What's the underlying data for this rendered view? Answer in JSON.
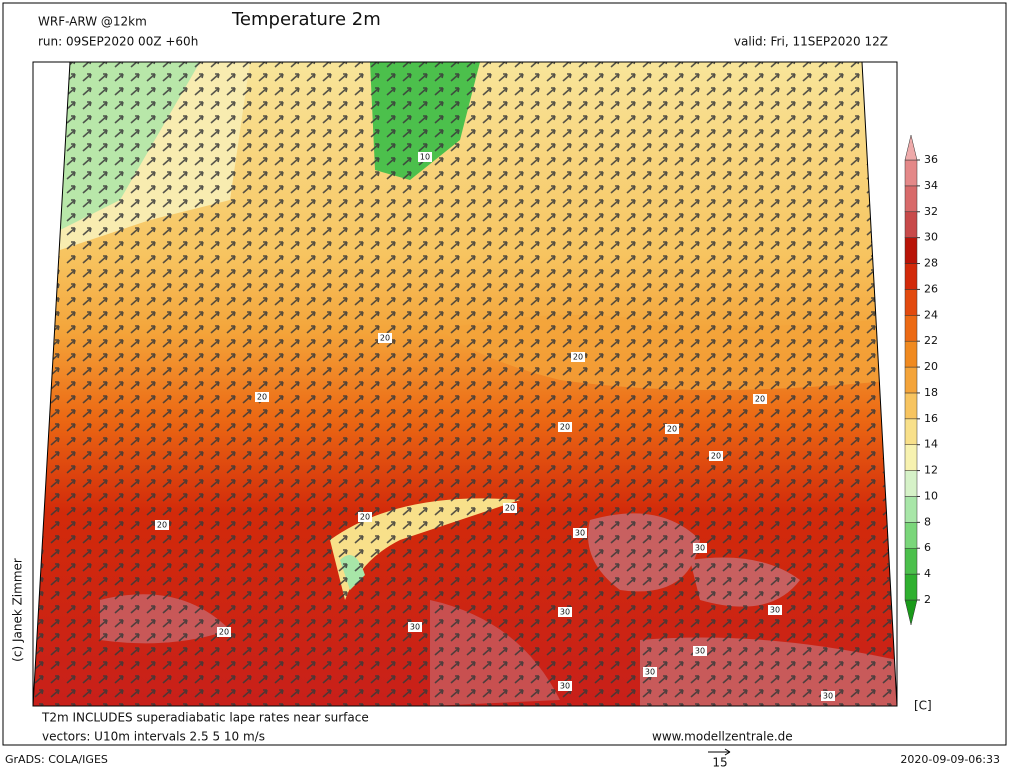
{
  "header": {
    "model": "WRF-ARW @12km",
    "title": "Temperature 2m",
    "run": "run: 09SEP2020 00Z +60h",
    "valid": "valid: Fri, 11SEP2020 12Z"
  },
  "credit": "(c) Janek Zimmer",
  "colorbar": {
    "unit": "[C]",
    "levels": [
      2,
      4,
      6,
      8,
      10,
      12,
      14,
      16,
      18,
      20,
      22,
      24,
      26,
      28,
      30,
      32,
      34,
      36
    ],
    "colors": [
      "#1a9a1a",
      "#2fb02f",
      "#4cc04c",
      "#7ad67a",
      "#a8e6a8",
      "#d6f2c8",
      "#f7f2b0",
      "#f8e08a",
      "#f7c460",
      "#f4a43a",
      "#f08a20",
      "#ec6a14",
      "#e24a0e",
      "#d22a0a",
      "#b81408",
      "#c84a4a",
      "#d86a6a",
      "#e48888",
      "#eeaaaa"
    ]
  },
  "contour_labels": [
    10,
    20,
    20,
    20,
    20,
    20,
    20,
    20,
    20,
    20,
    20,
    30,
    30,
    30,
    30,
    30,
    30,
    30,
    30,
    30,
    20
  ],
  "footer": {
    "note": "T2m INCLUDES superadiabatic lape rates near surface",
    "vectors": "vectors: U10m intervals 2.5 5 10 m/s",
    "website": "www.modellzentrale.de",
    "software": "GrADS: COLA/IGES",
    "reference_vector": 15,
    "timestamp": "2020-09-09-06:33"
  }
}
